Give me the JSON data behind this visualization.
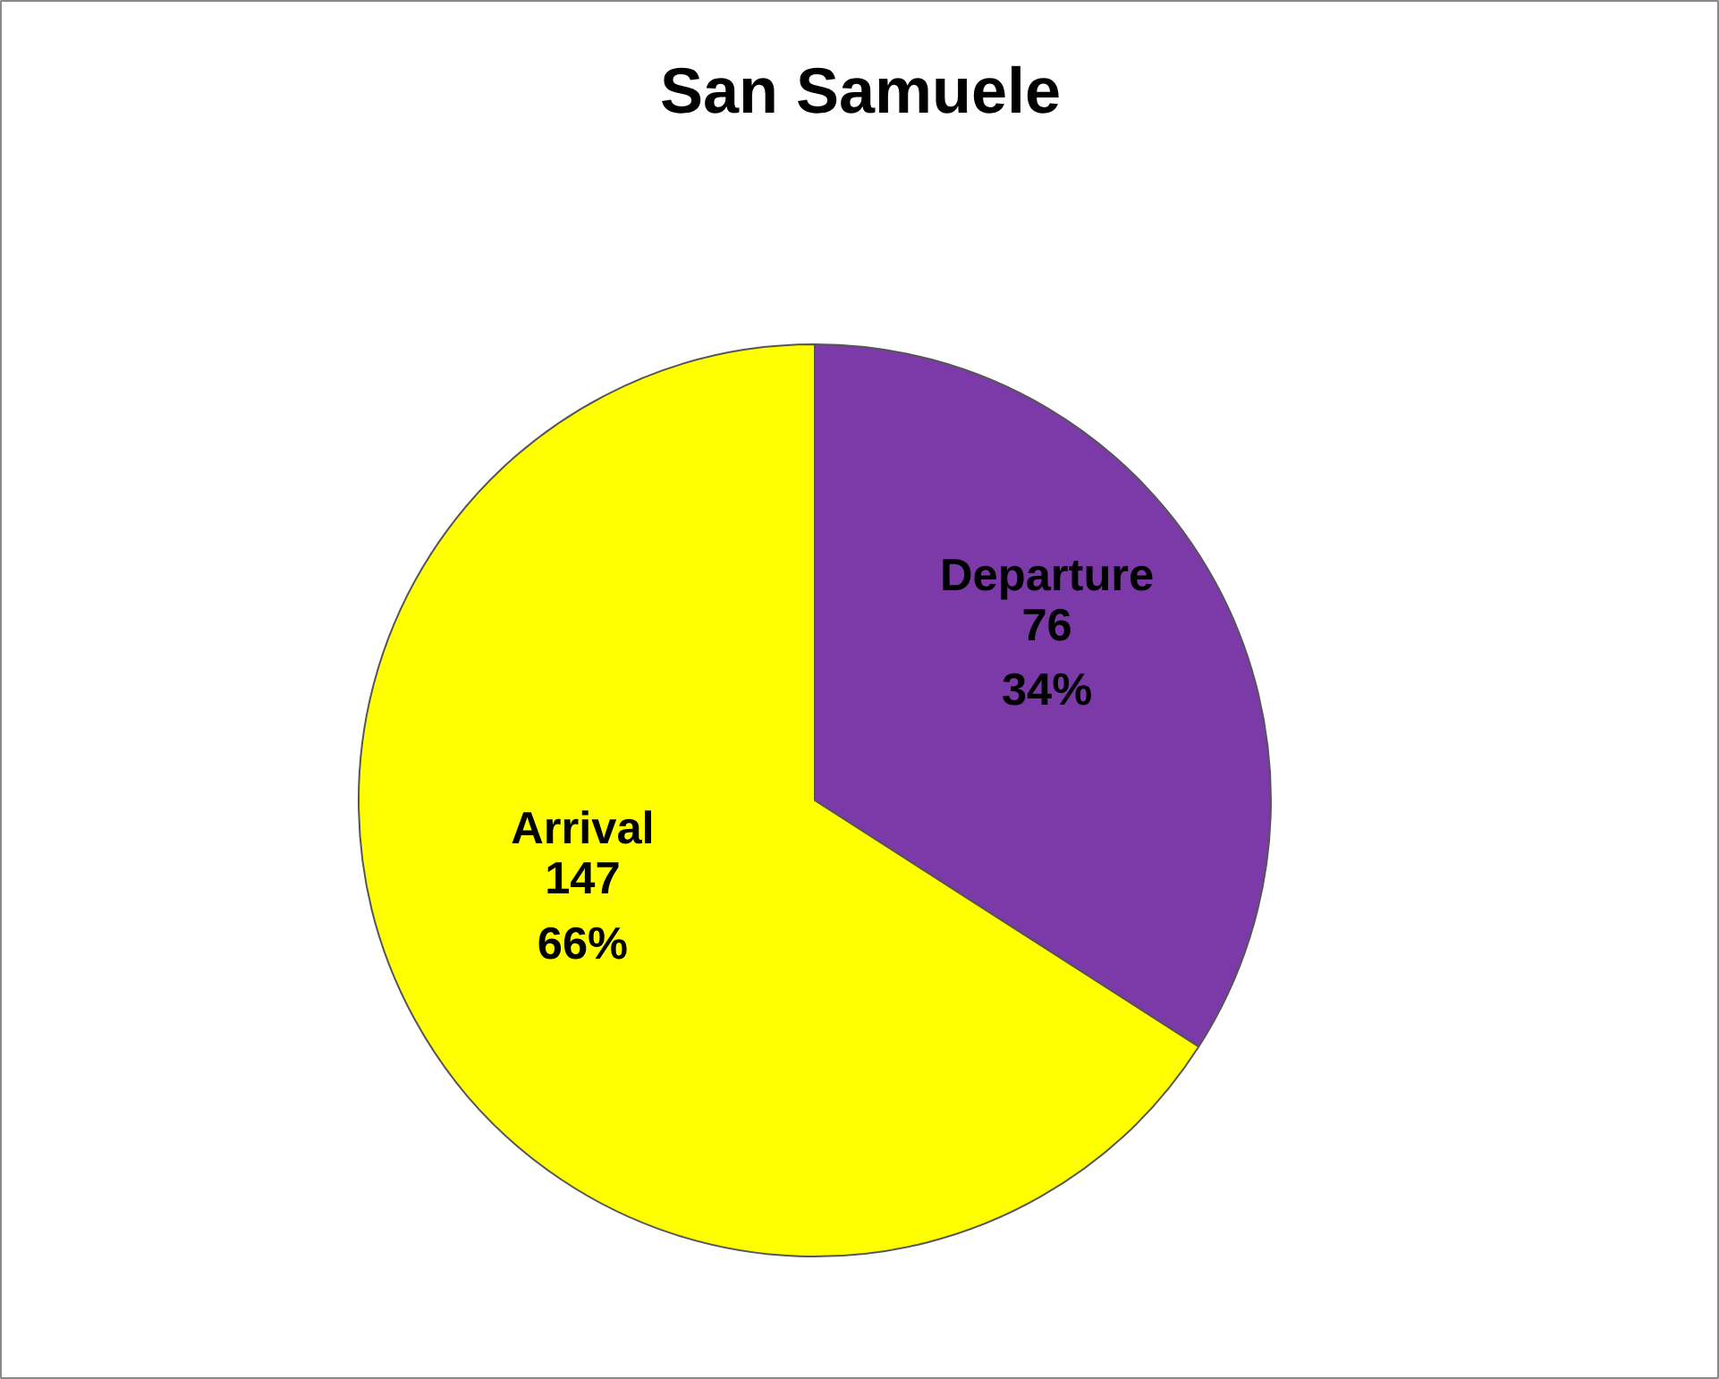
{
  "chart_data": {
    "type": "pie",
    "title": "San Samuele",
    "categories": [
      "Departure",
      "Arrival"
    ],
    "values": [
      76,
      147
    ],
    "colors": [
      "#7b3aa8",
      "#ffff00"
    ],
    "value_labels": [
      "76\n34%",
      "147\n66%"
    ]
  }
}
